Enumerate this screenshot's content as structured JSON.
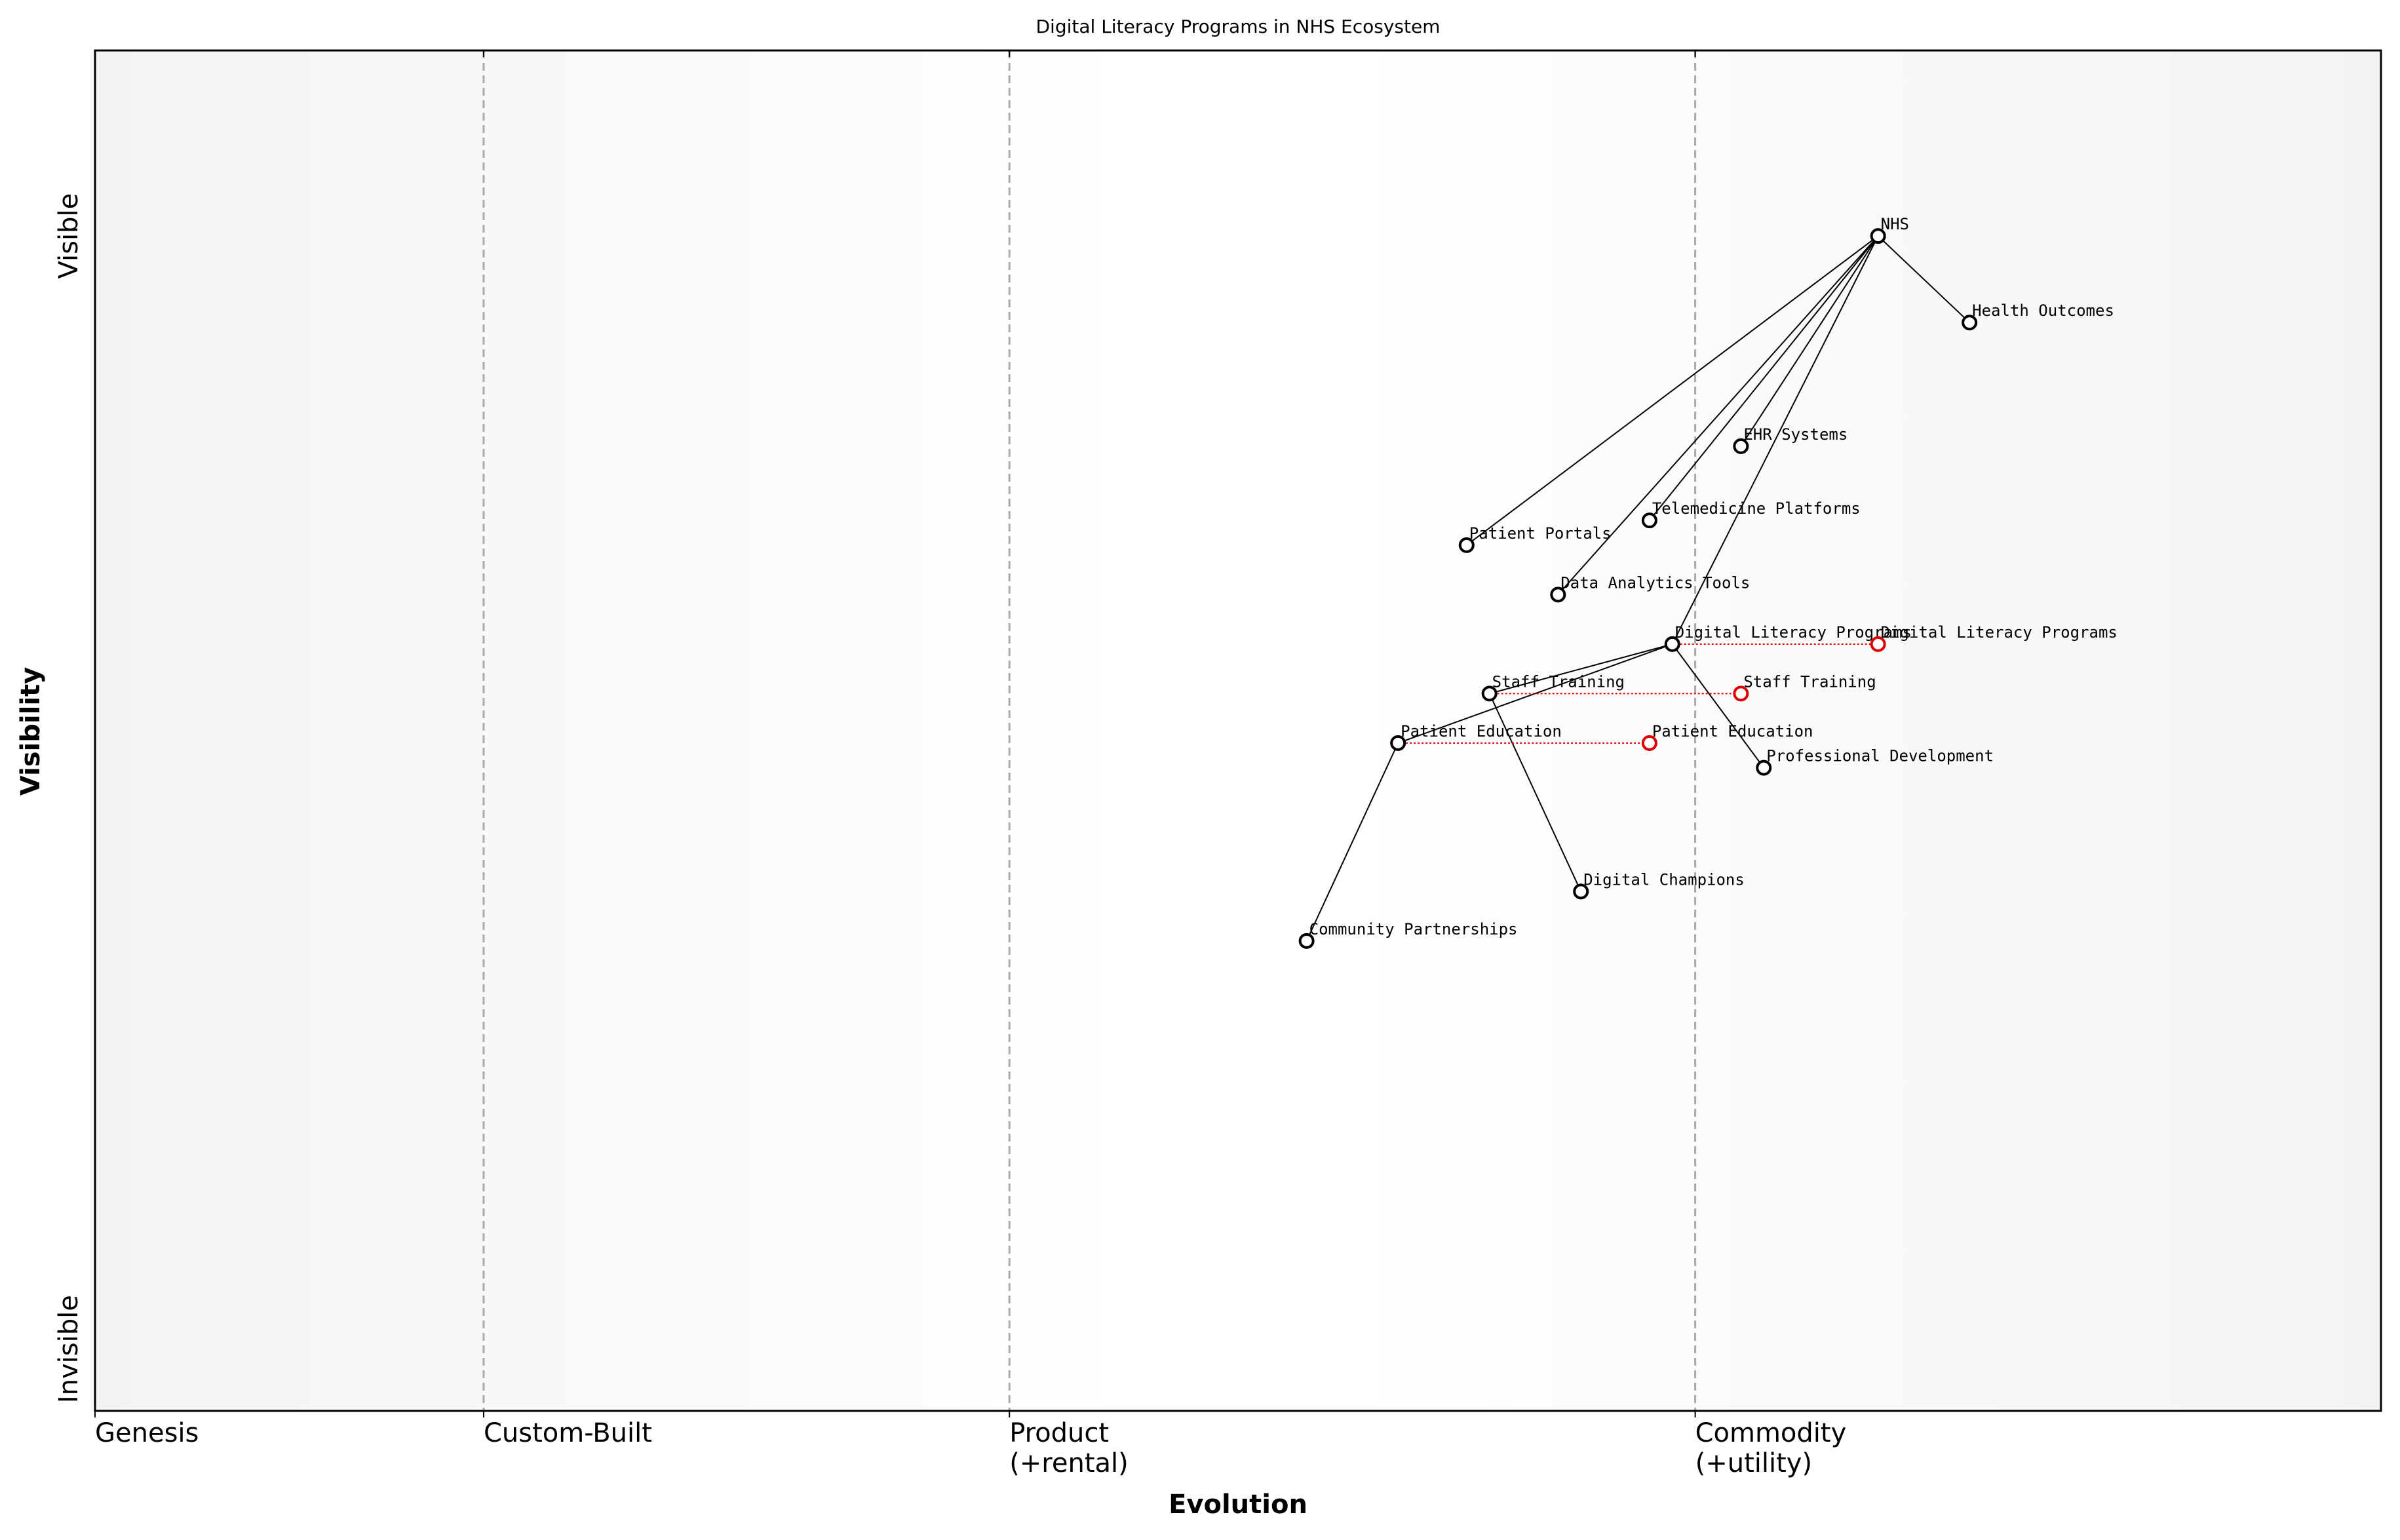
{
  "chart_data": {
    "type": "wardley",
    "title": "Digital Literacy Programs in NHS Ecosystem",
    "xlabel": "Evolution",
    "ylabel": "Visibility",
    "xlim": [
      0,
      1
    ],
    "ylim": [
      0,
      1.1
    ],
    "xticks": [
      {
        "value": 0,
        "label": "Genesis"
      },
      {
        "value": 0.17,
        "label": "Custom-Built"
      },
      {
        "value": 0.4,
        "label": "Product\n(+rental)"
      },
      {
        "value": 0.7,
        "label": "Commodity\n(+utility)"
      }
    ],
    "yticks": [
      {
        "value": 0.05,
        "label": "Invisible"
      },
      {
        "value": 0.95,
        "label": "Visible"
      }
    ],
    "stage_lines": true,
    "node_color": "#000000",
    "evolve_color": "#dd0000",
    "nodes": [
      {
        "name": "NHS",
        "x": 0.78,
        "y": 0.95
      },
      {
        "name": "Health Outcomes",
        "x": 0.82,
        "y": 0.88
      },
      {
        "name": "EHR Systems",
        "x": 0.72,
        "y": 0.78
      },
      {
        "name": "Telemedicine Platforms",
        "x": 0.68,
        "y": 0.72
      },
      {
        "name": "Patient Portals",
        "x": 0.6,
        "y": 0.7
      },
      {
        "name": "Data Analytics Tools",
        "x": 0.64,
        "y": 0.66
      },
      {
        "name": "Digital Literacy Programs",
        "x": 0.69,
        "y": 0.62
      },
      {
        "name": "Staff Training",
        "x": 0.61,
        "y": 0.58
      },
      {
        "name": "Patient Education",
        "x": 0.57,
        "y": 0.54
      },
      {
        "name": "Professional Development",
        "x": 0.73,
        "y": 0.52
      },
      {
        "name": "Digital Champions",
        "x": 0.65,
        "y": 0.42
      },
      {
        "name": "Community Partnerships",
        "x": 0.53,
        "y": 0.38
      }
    ],
    "links": [
      [
        "NHS",
        "Patient Portals"
      ],
      [
        "NHS",
        "Telemedicine Platforms"
      ],
      [
        "NHS",
        "Data Analytics Tools"
      ],
      [
        "NHS",
        "EHR Systems"
      ],
      [
        "NHS",
        "Digital Literacy Programs"
      ],
      [
        "NHS",
        "Health Outcomes"
      ],
      [
        "Digital Literacy Programs",
        "Staff Training"
      ],
      [
        "Digital Literacy Programs",
        "Patient Education"
      ],
      [
        "Digital Literacy Programs",
        "Professional Development"
      ],
      [
        "Staff Training",
        "Digital Champions"
      ],
      [
        "Patient Education",
        "Community Partnerships"
      ]
    ],
    "evolve": [
      {
        "name": "Digital Literacy Programs",
        "x": 0.78,
        "y": 0.62
      },
      {
        "name": "Staff Training",
        "x": 0.72,
        "y": 0.58
      },
      {
        "name": "Patient Education",
        "x": 0.68,
        "y": 0.54
      }
    ]
  }
}
